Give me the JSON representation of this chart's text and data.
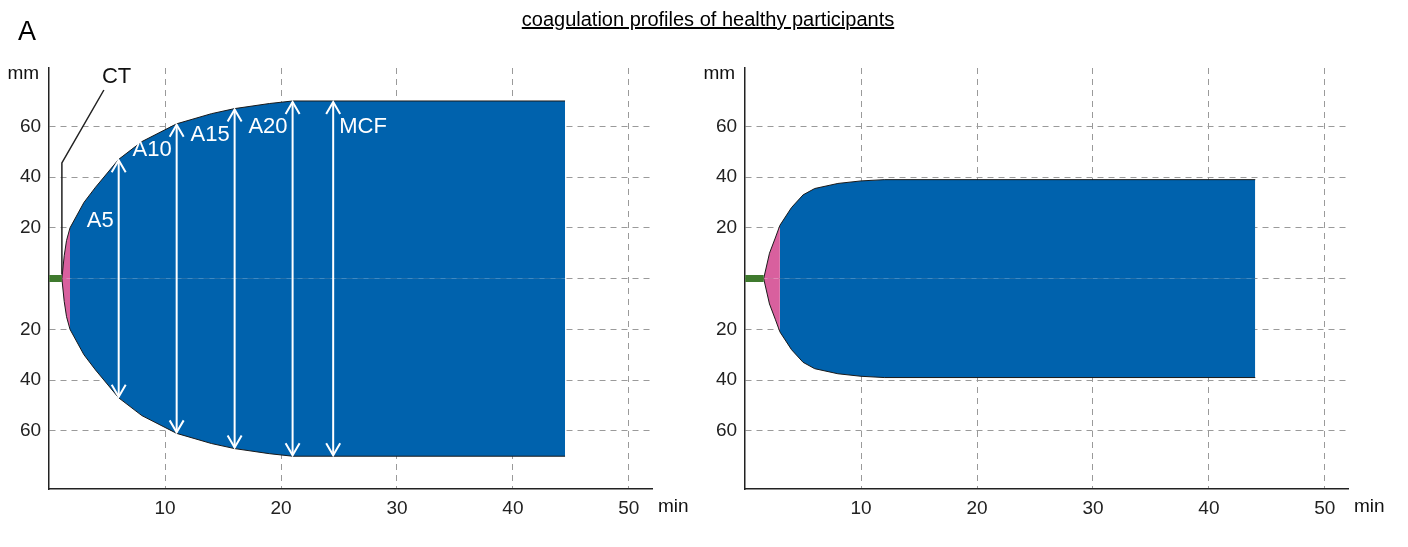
{
  "chart_data": [
    {
      "type": "area",
      "title": "coagulation profiles of healthy participants",
      "xlabel": "min",
      "ylabel": "mm",
      "xlim": [
        0,
        52
      ],
      "ylim": [
        -83,
        83
      ],
      "xticks": [
        10,
        20,
        30,
        40,
        50
      ],
      "yticks": [
        {
          "value": 60,
          "label": "60"
        },
        {
          "value": 40,
          "label": "40"
        },
        {
          "value": 20,
          "label": "20"
        },
        {
          "value": 0,
          "label": null
        },
        {
          "value": -20,
          "label": "20"
        },
        {
          "value": -40,
          "label": "40"
        },
        {
          "value": -60,
          "label": "60"
        }
      ],
      "grid": true,
      "annotations": [
        "A",
        {
          "text": "CT",
          "x": 1.1,
          "y": 0
        },
        {
          "text": "A5",
          "x": 6,
          "y": 47
        },
        {
          "text": "A10",
          "x": 11,
          "y": 61
        },
        {
          "text": "A15",
          "x": 16,
          "y": 67
        },
        {
          "text": "A20",
          "x": 21,
          "y": 70
        },
        {
          "text": "MCF",
          "x": 24.5,
          "y": 70
        }
      ],
      "series": [
        {
          "type": "line",
          "color": "#3f7a2e",
          "x": [
            0,
            1.1
          ],
          "values": [
            0,
            0
          ]
        },
        {
          "color": "#d8609e",
          "x": [
            1.1,
            1.3,
            1.5,
            1.8
          ],
          "values": [
            0,
            9,
            15,
            20
          ]
        },
        {
          "color": "#d8609e",
          "x": [
            1.1,
            1.3,
            1.5,
            1.8
          ],
          "values": [
            0,
            -9,
            -15,
            -20
          ]
        },
        {
          "color": "#0062ad",
          "x": [
            1.8,
            3,
            4,
            6,
            8,
            11,
            14,
            16,
            19,
            21,
            25,
            44.5
          ],
          "values": [
            20,
            30,
            36,
            47,
            54,
            61,
            65,
            67,
            69,
            70,
            70,
            70
          ]
        },
        {
          "color": "#0062ad",
          "x": [
            1.8,
            3,
            4,
            6,
            8,
            11,
            14,
            16,
            19,
            21,
            25,
            44.5
          ],
          "values": [
            -20,
            -30,
            -36,
            -47,
            -54,
            -61,
            -65,
            -67,
            -69,
            -70,
            -70,
            -70
          ]
        }
      ]
    },
    {
      "type": "area",
      "xlabel": "min",
      "ylabel": "mm",
      "xlim": [
        0,
        52
      ],
      "ylim": [
        -83,
        83
      ],
      "xticks": [
        10,
        20,
        30,
        40,
        50
      ],
      "yticks": [
        {
          "value": 60,
          "label": "60"
        },
        {
          "value": 40,
          "label": "40"
        },
        {
          "value": 20,
          "label": "20"
        },
        {
          "value": 0,
          "label": null
        },
        {
          "value": -20,
          "label": "20"
        },
        {
          "value": -40,
          "label": "40"
        },
        {
          "value": -60,
          "label": "60"
        }
      ],
      "grid": true,
      "series": [
        {
          "type": "line",
          "color": "#3f7a2e",
          "x": [
            0,
            1.6
          ],
          "values": [
            0,
            0
          ]
        },
        {
          "color": "#d8609e",
          "x": [
            1.6,
            2.1,
            2.6,
            3.0
          ],
          "values": [
            0,
            10,
            16,
            21
          ]
        },
        {
          "color": "#d8609e",
          "x": [
            1.6,
            2.1,
            2.6,
            3.0
          ],
          "values": [
            0,
            -10,
            -16,
            -21
          ]
        },
        {
          "color": "#0062ad",
          "x": [
            3,
            4,
            5,
            6,
            8,
            10,
            12,
            44
          ],
          "values": [
            21,
            28,
            33,
            35.5,
            37.5,
            38.5,
            39,
            39
          ]
        },
        {
          "color": "#0062ad",
          "x": [
            3,
            4,
            5,
            6,
            8,
            10,
            12,
            44
          ],
          "values": [
            -21,
            -28,
            -33,
            -35.5,
            -37.5,
            -38.5,
            -39,
            -39
          ]
        }
      ]
    }
  ]
}
